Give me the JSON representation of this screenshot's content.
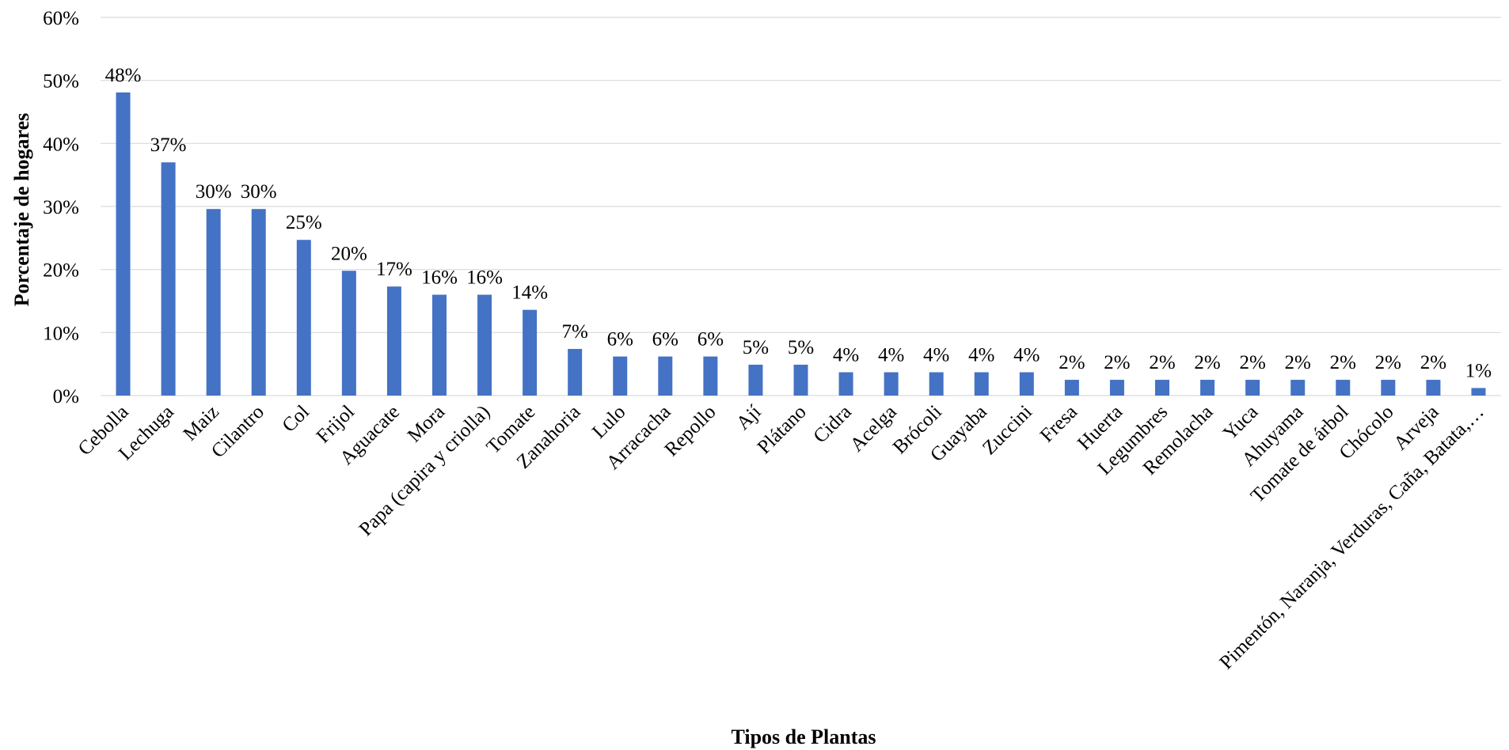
{
  "chart_data": {
    "type": "bar",
    "title": "",
    "xlabel": "Tipos de Plantas",
    "ylabel": "Porcentaje de hogares",
    "ylim": [
      0,
      60
    ],
    "yticks": [
      0,
      10,
      20,
      30,
      40,
      50,
      60
    ],
    "yticks_labels": [
      "0%",
      "10%",
      "20%",
      "30%",
      "40%",
      "50%",
      "60%"
    ],
    "grid": true,
    "legend": "none",
    "bar_color": "#4472c4",
    "categories": [
      "Cebolla",
      "Lechuga",
      "Maiz",
      "Cilantro",
      "Col",
      "Frijol",
      "Aguacate",
      "Mora",
      "Papa (capira y criolla)",
      "Tomate",
      "Zanahoria",
      "Lulo",
      "Arracacha",
      "Repollo",
      "Ají",
      "Plátano",
      "Cidra",
      "Acelga",
      "Brócoli",
      "Guayaba",
      "Zuccini",
      "Fresa",
      "Huerta",
      "Legumbres",
      "Remolacha",
      "Yuca",
      "Ahuyama",
      "Tomate de árbol",
      "Chócolo",
      "Arveja",
      "Pimentón, Naranja, Verduras, Caña, Batata,…"
    ],
    "values": [
      48.1,
      37.0,
      29.6,
      29.6,
      24.7,
      19.8,
      17.3,
      16.0,
      16.0,
      13.6,
      7.4,
      6.2,
      6.2,
      6.2,
      4.9,
      4.9,
      3.7,
      3.7,
      3.7,
      3.7,
      3.7,
      2.5,
      2.5,
      2.5,
      2.5,
      2.5,
      2.5,
      2.5,
      2.5,
      2.5,
      1.2
    ],
    "data_labels": [
      "48%",
      "37%",
      "30%",
      "30%",
      "25%",
      "20%",
      "17%",
      "16%",
      "16%",
      "14%",
      "7%",
      "6%",
      "6%",
      "6%",
      "5%",
      "5%",
      "4%",
      "4%",
      "4%",
      "4%",
      "4%",
      "2%",
      "2%",
      "2%",
      "2%",
      "2%",
      "2%",
      "2%",
      "2%",
      "2%",
      "1%"
    ]
  }
}
